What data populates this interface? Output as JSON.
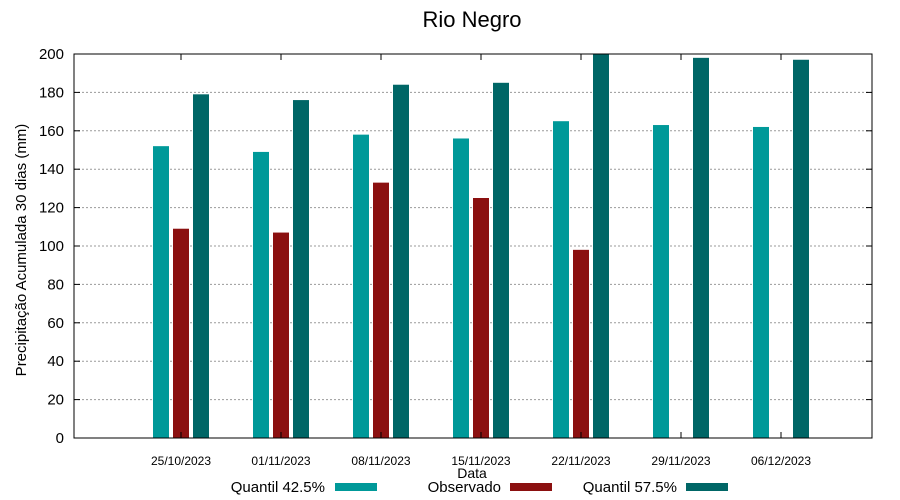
{
  "chart_data": {
    "type": "bar",
    "title": "Rio Negro",
    "xlabel": "Data",
    "ylabel": "Precipitação Acumulada 30 dias (mm)",
    "ylim": [
      0,
      200
    ],
    "yticks": [
      0,
      20,
      40,
      60,
      80,
      100,
      120,
      140,
      160,
      180,
      200
    ],
    "grid": true,
    "legend_position": "bottom",
    "categories": [
      "25/10/2023",
      "01/11/2023",
      "08/11/2023",
      "15/11/2023",
      "22/11/2023",
      "29/11/2023",
      "06/12/2023"
    ],
    "series": [
      {
        "name": "Quantil 42.5%",
        "color": "#009999",
        "values": [
          152,
          149,
          158,
          156,
          165,
          163,
          162
        ]
      },
      {
        "name": "Observado",
        "color": "#8b1010",
        "values": [
          109,
          107,
          133,
          125,
          98,
          null,
          null
        ]
      },
      {
        "name": "Quantil 57.5%",
        "color": "#006666",
        "values": [
          179,
          176,
          184,
          185,
          200,
          198,
          197
        ]
      }
    ]
  }
}
